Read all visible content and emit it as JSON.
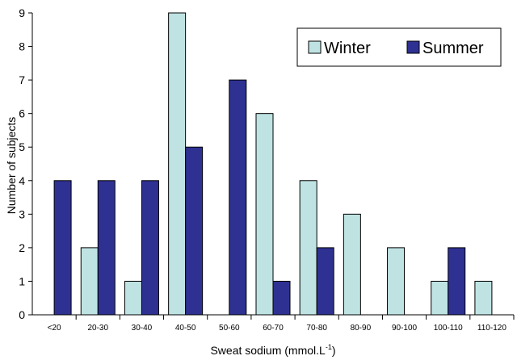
{
  "chart_data": {
    "type": "bar",
    "categories": [
      "<20",
      "20-30",
      "30-40",
      "40-50",
      "50-60",
      "60-70",
      "70-80",
      "80-90",
      "90-100",
      "100-110",
      "110-120"
    ],
    "series": [
      {
        "name": "Winter",
        "color": "#bfe3e3",
        "values": [
          0,
          2,
          1,
          9,
          0,
          6,
          4,
          3,
          2,
          1,
          1
        ]
      },
      {
        "name": "Summer",
        "color": "#2e3192",
        "values": [
          4,
          4,
          4,
          5,
          7,
          1,
          2,
          0,
          0,
          2,
          0
        ]
      }
    ],
    "ylabel": "Number of subjects",
    "xlabel": "Sweat sodium (mmol.L",
    "xlabel_superscript": "-1",
    "xlabel_suffix": ")",
    "ylim": [
      0,
      9
    ],
    "yticks": [
      0,
      1,
      2,
      3,
      4,
      5,
      6,
      7,
      8,
      9
    ],
    "grid": false,
    "legend_position": "top-right"
  }
}
